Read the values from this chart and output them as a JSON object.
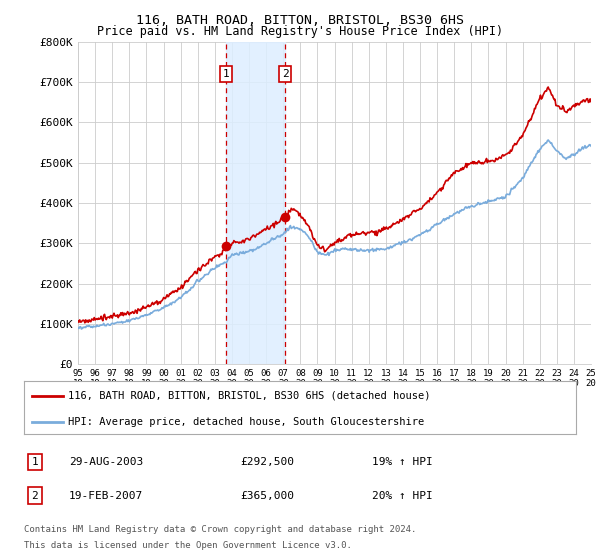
{
  "title": "116, BATH ROAD, BITTON, BRISTOL, BS30 6HS",
  "subtitle": "Price paid vs. HM Land Registry's House Price Index (HPI)",
  "ylim": [
    0,
    800000
  ],
  "yticks": [
    0,
    100000,
    200000,
    300000,
    400000,
    500000,
    600000,
    700000,
    800000
  ],
  "ytick_labels": [
    "£0",
    "£100K",
    "£200K",
    "£300K",
    "£400K",
    "£500K",
    "£600K",
    "£700K",
    "£800K"
  ],
  "sale1_year": 2003.65,
  "sale1_price": 292500,
  "sale2_year": 2007.12,
  "sale2_price": 365000,
  "sale1_date": "29-AUG-2003",
  "sale1_amount": "£292,500",
  "sale1_hpi": "19% ↑ HPI",
  "sale2_date": "19-FEB-2007",
  "sale2_amount": "£365,000",
  "sale2_hpi": "20% ↑ HPI",
  "legend_red": "116, BATH ROAD, BITTON, BRISTOL, BS30 6HS (detached house)",
  "legend_blue": "HPI: Average price, detached house, South Gloucestershire",
  "footer1": "Contains HM Land Registry data © Crown copyright and database right 2024.",
  "footer2": "This data is licensed under the Open Government Licence v3.0.",
  "red_color": "#cc0000",
  "blue_color": "#7aacdc",
  "shade_color": "#ddeeff",
  "background": "#ffffff",
  "grid_color": "#cccccc"
}
